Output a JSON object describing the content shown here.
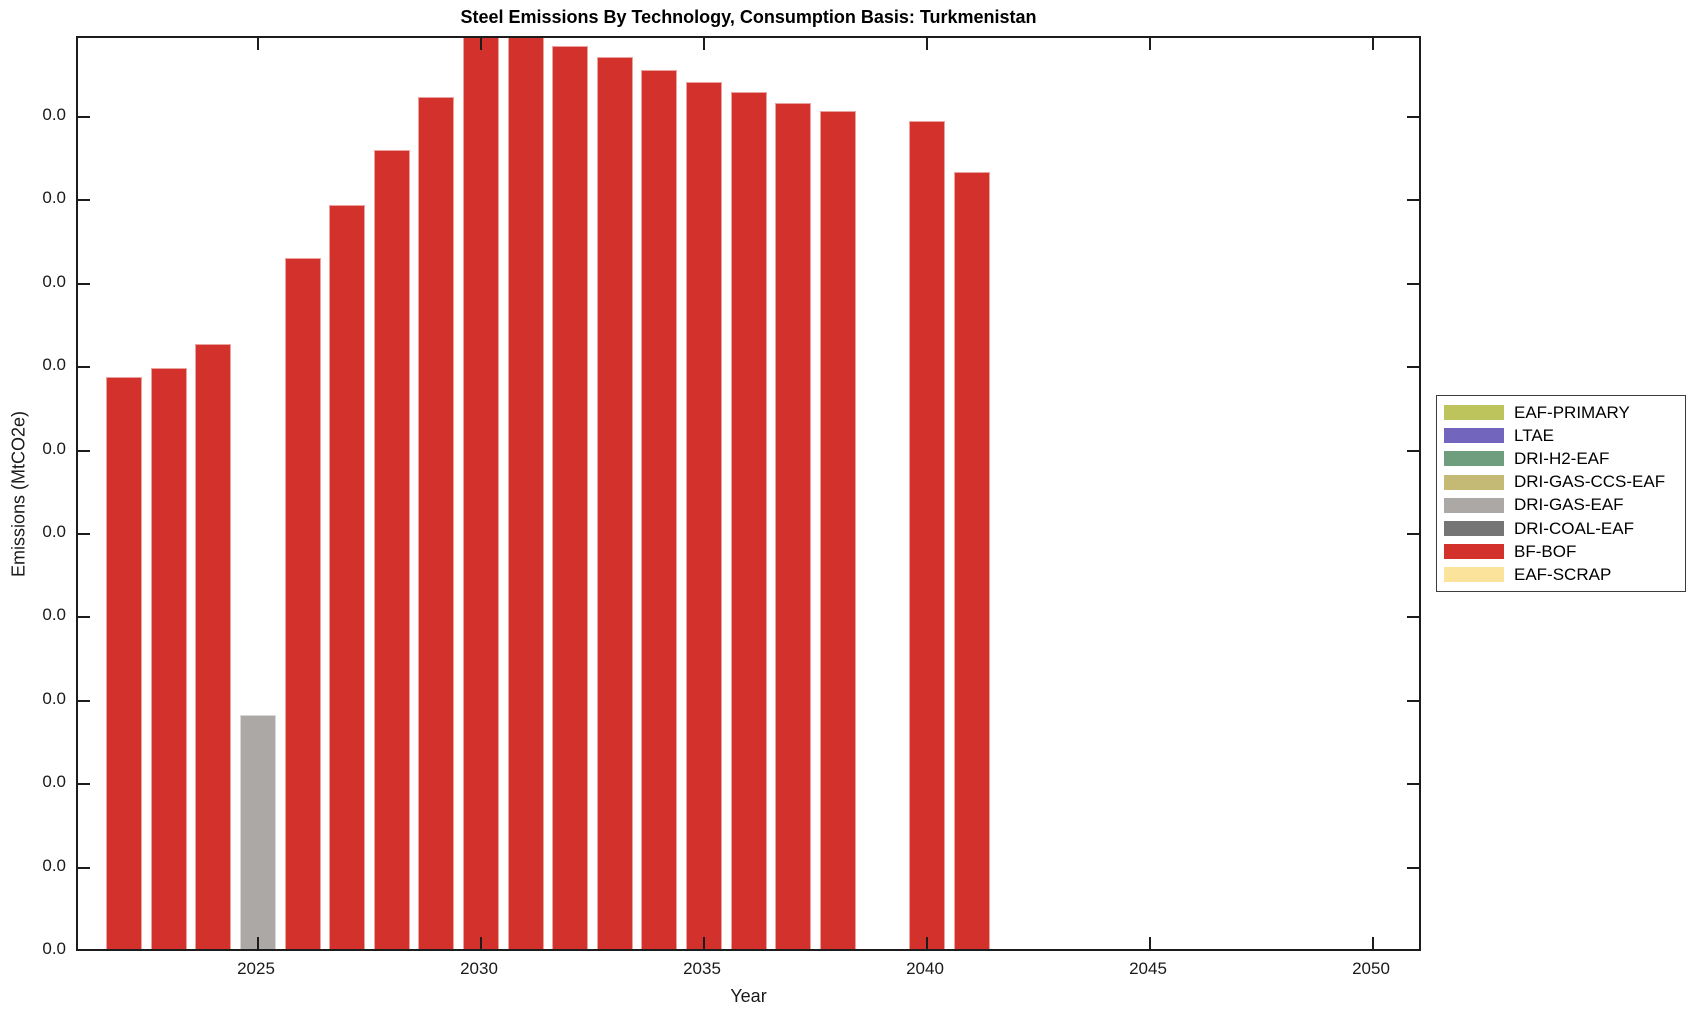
{
  "title": "Steel Emissions By Technology, Consumption Basis: Turkmenistan",
  "chart_data": {
    "type": "bar",
    "title": "Steel Emissions By Technology, Consumption Basis: Turkmenistan",
    "xlabel": "Year",
    "ylabel": "Emissions (MtCO2e)",
    "grid": false,
    "background": "#ffffff",
    "xlim": [
      2021,
      2051
    ],
    "x_ticks": [
      2025,
      2030,
      2035,
      2040,
      2045,
      2050
    ],
    "y_tick_labels": [
      "0.0",
      "0.0",
      "0.0",
      "0.0",
      "0.0",
      "0.0",
      "0.0",
      "0.0",
      "0.0",
      "0.0",
      "0.0"
    ],
    "value_units": "y-axis tick intervals (every y tick label renders as 0.0)",
    "bars": [
      {
        "year": 2022,
        "technology": "BF-BOF",
        "value": 6.86
      },
      {
        "year": 2023,
        "technology": "BF-BOF",
        "value": 6.97
      },
      {
        "year": 2024,
        "technology": "BF-BOF",
        "value": 7.25
      },
      {
        "year": 2025,
        "technology": "DRI-GAS-EAF",
        "value": 2.8
      },
      {
        "year": 2026,
        "technology": "BF-BOF",
        "value": 8.28
      },
      {
        "year": 2027,
        "technology": "BF-BOF",
        "value": 8.92
      },
      {
        "year": 2028,
        "technology": "BF-BOF",
        "value": 9.58
      },
      {
        "year": 2029,
        "technology": "BF-BOF",
        "value": 10.22
      },
      {
        "year": 2030,
        "technology": "BF-BOF",
        "value": 11.0,
        "clipped_at_top": true
      },
      {
        "year": 2031,
        "technology": "BF-BOF",
        "value": 11.0,
        "clipped_at_top": true
      },
      {
        "year": 2032,
        "technology": "BF-BOF",
        "value": 10.83
      },
      {
        "year": 2033,
        "technology": "BF-BOF",
        "value": 10.69
      },
      {
        "year": 2034,
        "technology": "BF-BOF",
        "value": 10.54
      },
      {
        "year": 2035,
        "technology": "BF-BOF",
        "value": 10.39
      },
      {
        "year": 2036,
        "technology": "BF-BOF",
        "value": 10.27
      },
      {
        "year": 2037,
        "technology": "BF-BOF",
        "value": 10.15
      },
      {
        "year": 2038,
        "technology": "BF-BOF",
        "value": 10.05
      },
      {
        "year": 2039,
        "technology": "none",
        "value": 0
      },
      {
        "year": 2040,
        "technology": "BF-BOF",
        "value": 9.93
      },
      {
        "year": 2041,
        "technology": "BF-BOF",
        "value": 9.32
      }
    ],
    "legend_position": "outside-right",
    "legend": [
      {
        "label": "EAF-PRIMARY",
        "color": "#BDC45B"
      },
      {
        "label": "LTAE",
        "color": "#7265BD"
      },
      {
        "label": "DRI-H2-EAF",
        "color": "#6F9E7F"
      },
      {
        "label": "DRI-GAS-CCS-EAF",
        "color": "#C5B976"
      },
      {
        "label": "DRI-GAS-EAF",
        "color": "#ABA8A6"
      },
      {
        "label": "DRI-COAL-EAF",
        "color": "#757575"
      },
      {
        "label": "BF-BOF",
        "color": "#D2322B"
      },
      {
        "label": "EAF-SCRAP",
        "color": "#FBE39C"
      }
    ],
    "series_color_map": {
      "BF-BOF": "#D2322B",
      "DRI-GAS-EAF": "#ABA8A6"
    },
    "axis_color": "#1c1c1c"
  }
}
